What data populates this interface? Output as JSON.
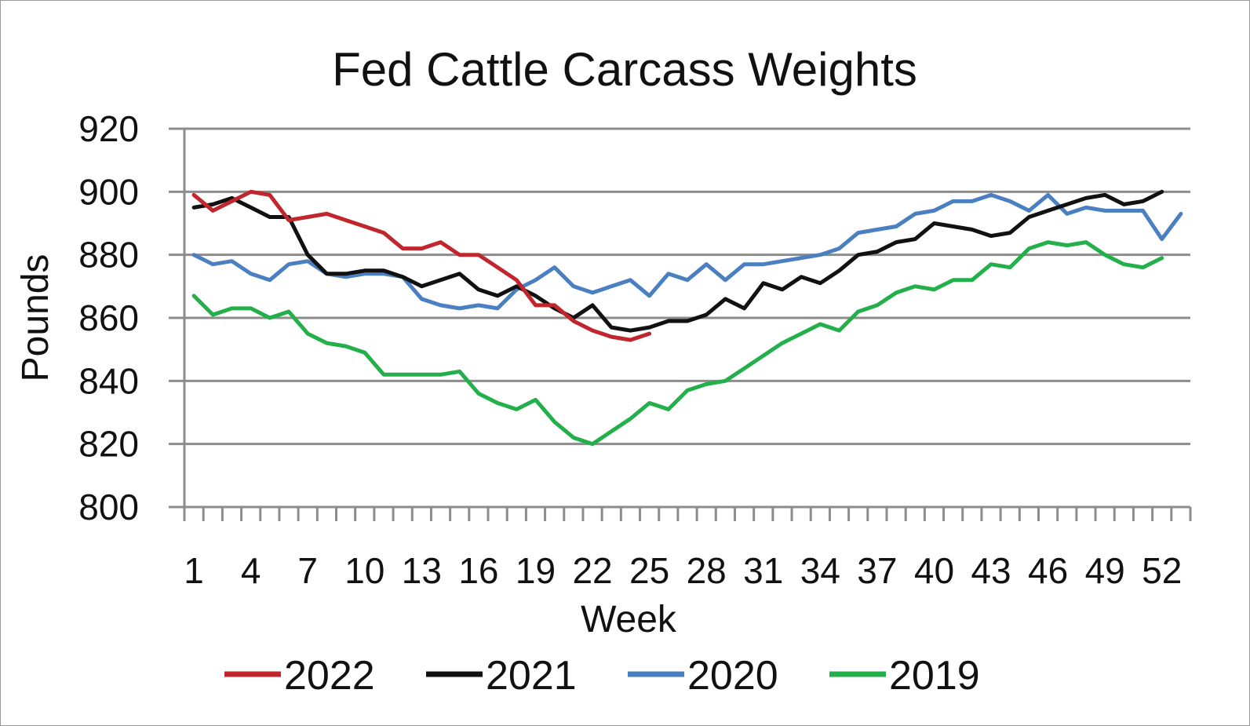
{
  "chart_data": {
    "type": "line",
    "title": "Fed Cattle Carcass Weights",
    "xlabel": "Week",
    "ylabel": "Pounds",
    "ylim": [
      800,
      920
    ],
    "yticks": [
      800,
      820,
      840,
      860,
      880,
      900,
      920
    ],
    "xlim": [
      1,
      53
    ],
    "xtick_labels": [
      "1",
      "4",
      "7",
      "10",
      "13",
      "16",
      "19",
      "22",
      "25",
      "28",
      "31",
      "34",
      "37",
      "40",
      "43",
      "46",
      "49",
      "52"
    ],
    "grid": "horizontal",
    "legend_position": "bottom",
    "series": [
      {
        "name": "2022",
        "color": "#c0262c",
        "x": [
          1,
          2,
          3,
          4,
          5,
          6,
          7,
          8,
          9,
          10,
          11,
          12,
          13,
          14,
          15,
          16,
          17,
          18,
          19,
          20,
          21,
          22,
          23,
          24,
          25
        ],
        "values": [
          899,
          894,
          897,
          900,
          899,
          891,
          892,
          893,
          891,
          889,
          887,
          882,
          882,
          884,
          880,
          880,
          876,
          872,
          864,
          864,
          859,
          856,
          854,
          853,
          855
        ]
      },
      {
        "name": "2021",
        "color": "#111111",
        "x": [
          1,
          2,
          3,
          4,
          5,
          6,
          7,
          8,
          9,
          10,
          11,
          12,
          13,
          14,
          15,
          16,
          17,
          18,
          19,
          20,
          21,
          22,
          23,
          24,
          25,
          26,
          27,
          28,
          29,
          30,
          31,
          32,
          33,
          34,
          35,
          36,
          37,
          38,
          39,
          40,
          41,
          42,
          43,
          44,
          45,
          46,
          47,
          48,
          49,
          50,
          51,
          52
        ],
        "values": [
          895,
          896,
          898,
          895,
          892,
          892,
          880,
          874,
          874,
          875,
          875,
          873,
          870,
          872,
          874,
          869,
          867,
          870,
          867,
          863,
          860,
          864,
          857,
          856,
          857,
          859,
          859,
          861,
          866,
          863,
          871,
          869,
          873,
          871,
          875,
          880,
          881,
          884,
          885,
          890,
          889,
          888,
          886,
          887,
          892,
          894,
          896,
          898,
          899,
          896,
          897,
          900
        ]
      },
      {
        "name": "2020",
        "color": "#4a7fc1",
        "x": [
          1,
          2,
          3,
          4,
          5,
          6,
          7,
          8,
          9,
          10,
          11,
          12,
          13,
          14,
          15,
          16,
          17,
          18,
          19,
          20,
          21,
          22,
          23,
          24,
          25,
          26,
          27,
          28,
          29,
          30,
          31,
          32,
          33,
          34,
          35,
          36,
          37,
          38,
          39,
          40,
          41,
          42,
          43,
          44,
          45,
          46,
          47,
          48,
          49,
          50,
          51,
          52,
          53
        ],
        "values": [
          880,
          877,
          878,
          874,
          872,
          877,
          878,
          874,
          873,
          874,
          874,
          873,
          866,
          864,
          863,
          864,
          863,
          869,
          872,
          876,
          870,
          868,
          870,
          872,
          867,
          874,
          872,
          877,
          872,
          877,
          877,
          878,
          879,
          880,
          882,
          887,
          888,
          889,
          893,
          894,
          897,
          897,
          899,
          897,
          894,
          899,
          893,
          895,
          894,
          894,
          894,
          885,
          893
        ]
      },
      {
        "name": "2019",
        "color": "#23b04b",
        "x": [
          1,
          2,
          3,
          4,
          5,
          6,
          7,
          8,
          9,
          10,
          11,
          12,
          13,
          14,
          15,
          16,
          17,
          18,
          19,
          20,
          21,
          22,
          23,
          24,
          25,
          26,
          27,
          28,
          29,
          30,
          31,
          32,
          33,
          34,
          35,
          36,
          37,
          38,
          39,
          40,
          41,
          42,
          43,
          44,
          45,
          46,
          47,
          48,
          49,
          50,
          51,
          52
        ],
        "values": [
          867,
          861,
          863,
          863,
          860,
          862,
          855,
          852,
          851,
          849,
          842,
          842,
          842,
          842,
          843,
          836,
          833,
          831,
          834,
          827,
          822,
          820,
          824,
          828,
          833,
          831,
          837,
          839,
          840,
          844,
          848,
          852,
          855,
          858,
          856,
          862,
          864,
          868,
          870,
          869,
          872,
          872,
          877,
          876,
          882,
          884,
          883,
          884,
          880,
          877,
          876,
          879
        ]
      }
    ]
  }
}
